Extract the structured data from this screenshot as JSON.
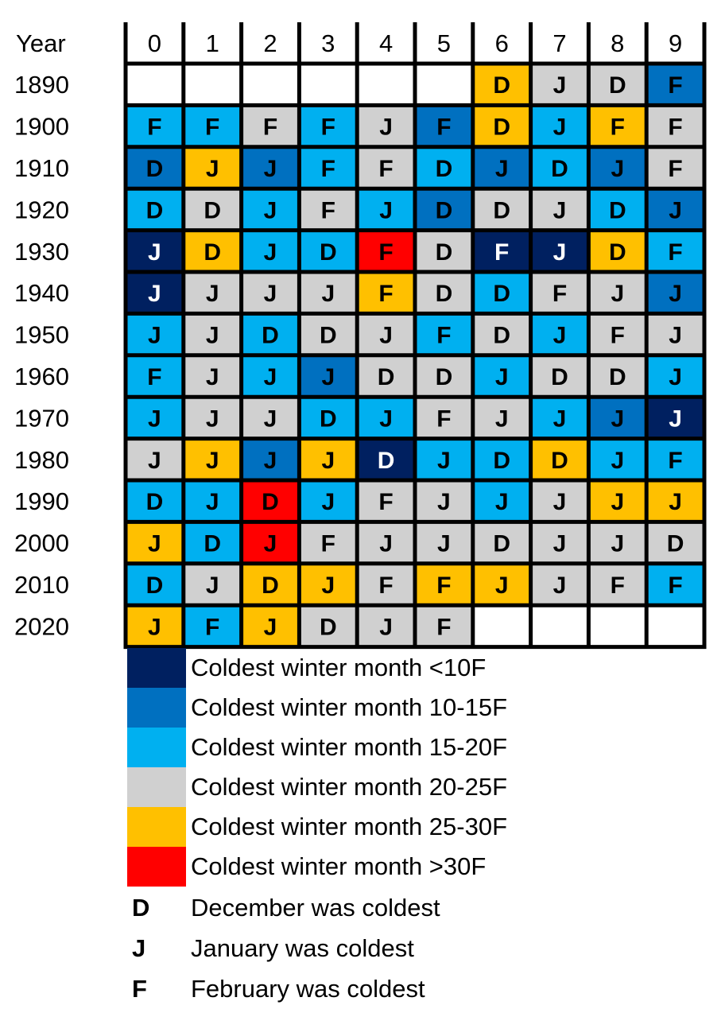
{
  "chart_data": {
    "type": "heatmap",
    "corner_label": "Year",
    "columns": [
      "0",
      "1",
      "2",
      "3",
      "4",
      "5",
      "6",
      "7",
      "8",
      "9"
    ],
    "rows": [
      "1890",
      "1900",
      "1910",
      "1920",
      "1930",
      "1940",
      "1950",
      "1960",
      "1970",
      "1980",
      "1990",
      "2000",
      "2010",
      "2020"
    ],
    "colors": {
      "lt10": "#002060",
      "10-15": "#0070C0",
      "15-20": "#00B0F0",
      "20-25": "#D0D0D0",
      "25-30": "#FFC000",
      "gt30": "#FF0000",
      "empty": "#FFFFFF"
    },
    "cells": [
      [
        null,
        null,
        null,
        null,
        null,
        null,
        {
          "m": "D",
          "c": "25-30"
        },
        {
          "m": "J",
          "c": "20-25"
        },
        {
          "m": "D",
          "c": "20-25"
        },
        {
          "m": "F",
          "c": "10-15"
        }
      ],
      [
        {
          "m": "F",
          "c": "15-20"
        },
        {
          "m": "F",
          "c": "15-20"
        },
        {
          "m": "F",
          "c": "20-25"
        },
        {
          "m": "F",
          "c": "15-20"
        },
        {
          "m": "J",
          "c": "20-25"
        },
        {
          "m": "F",
          "c": "10-15"
        },
        {
          "m": "D",
          "c": "25-30"
        },
        {
          "m": "J",
          "c": "15-20"
        },
        {
          "m": "F",
          "c": "25-30"
        },
        {
          "m": "F",
          "c": "20-25"
        }
      ],
      [
        {
          "m": "D",
          "c": "10-15"
        },
        {
          "m": "J",
          "c": "25-30"
        },
        {
          "m": "J",
          "c": "10-15"
        },
        {
          "m": "F",
          "c": "15-20"
        },
        {
          "m": "F",
          "c": "20-25"
        },
        {
          "m": "D",
          "c": "15-20"
        },
        {
          "m": "J",
          "c": "10-15"
        },
        {
          "m": "D",
          "c": "15-20"
        },
        {
          "m": "J",
          "c": "10-15"
        },
        {
          "m": "F",
          "c": "20-25"
        }
      ],
      [
        {
          "m": "D",
          "c": "15-20"
        },
        {
          "m": "D",
          "c": "20-25"
        },
        {
          "m": "J",
          "c": "15-20"
        },
        {
          "m": "F",
          "c": "20-25"
        },
        {
          "m": "J",
          "c": "15-20"
        },
        {
          "m": "D",
          "c": "10-15"
        },
        {
          "m": "D",
          "c": "20-25"
        },
        {
          "m": "J",
          "c": "20-25"
        },
        {
          "m": "D",
          "c": "15-20"
        },
        {
          "m": "J",
          "c": "10-15"
        }
      ],
      [
        {
          "m": "J",
          "c": "lt10"
        },
        {
          "m": "D",
          "c": "25-30"
        },
        {
          "m": "J",
          "c": "15-20"
        },
        {
          "m": "D",
          "c": "15-20"
        },
        {
          "m": "F",
          "c": "gt30"
        },
        {
          "m": "D",
          "c": "20-25"
        },
        {
          "m": "F",
          "c": "lt10"
        },
        {
          "m": "J",
          "c": "lt10"
        },
        {
          "m": "D",
          "c": "25-30"
        },
        {
          "m": "F",
          "c": "15-20"
        }
      ],
      [
        {
          "m": "J",
          "c": "lt10"
        },
        {
          "m": "J",
          "c": "20-25"
        },
        {
          "m": "J",
          "c": "20-25"
        },
        {
          "m": "J",
          "c": "20-25"
        },
        {
          "m": "F",
          "c": "25-30"
        },
        {
          "m": "D",
          "c": "20-25"
        },
        {
          "m": "D",
          "c": "15-20"
        },
        {
          "m": "F",
          "c": "20-25"
        },
        {
          "m": "J",
          "c": "20-25"
        },
        {
          "m": "J",
          "c": "10-15"
        }
      ],
      [
        {
          "m": "J",
          "c": "15-20"
        },
        {
          "m": "J",
          "c": "20-25"
        },
        {
          "m": "D",
          "c": "15-20"
        },
        {
          "m": "D",
          "c": "20-25"
        },
        {
          "m": "J",
          "c": "20-25"
        },
        {
          "m": "F",
          "c": "15-20"
        },
        {
          "m": "D",
          "c": "20-25"
        },
        {
          "m": "J",
          "c": "15-20"
        },
        {
          "m": "F",
          "c": "20-25"
        },
        {
          "m": "J",
          "c": "20-25"
        }
      ],
      [
        {
          "m": "F",
          "c": "15-20"
        },
        {
          "m": "J",
          "c": "20-25"
        },
        {
          "m": "J",
          "c": "15-20"
        },
        {
          "m": "J",
          "c": "10-15"
        },
        {
          "m": "D",
          "c": "20-25"
        },
        {
          "m": "D",
          "c": "20-25"
        },
        {
          "m": "J",
          "c": "15-20"
        },
        {
          "m": "D",
          "c": "20-25"
        },
        {
          "m": "D",
          "c": "20-25"
        },
        {
          "m": "J",
          "c": "15-20"
        }
      ],
      [
        {
          "m": "J",
          "c": "15-20"
        },
        {
          "m": "J",
          "c": "20-25"
        },
        {
          "m": "J",
          "c": "20-25"
        },
        {
          "m": "D",
          "c": "15-20"
        },
        {
          "m": "J",
          "c": "15-20"
        },
        {
          "m": "F",
          "c": "20-25"
        },
        {
          "m": "J",
          "c": "20-25"
        },
        {
          "m": "J",
          "c": "15-20"
        },
        {
          "m": "J",
          "c": "10-15"
        },
        {
          "m": "J",
          "c": "lt10"
        }
      ],
      [
        {
          "m": "J",
          "c": "20-25"
        },
        {
          "m": "J",
          "c": "25-30"
        },
        {
          "m": "J",
          "c": "10-15"
        },
        {
          "m": "J",
          "c": "25-30"
        },
        {
          "m": "D",
          "c": "lt10"
        },
        {
          "m": "J",
          "c": "15-20"
        },
        {
          "m": "D",
          "c": "15-20"
        },
        {
          "m": "D",
          "c": "25-30"
        },
        {
          "m": "J",
          "c": "15-20"
        },
        {
          "m": "F",
          "c": "15-20"
        }
      ],
      [
        {
          "m": "D",
          "c": "15-20"
        },
        {
          "m": "J",
          "c": "15-20"
        },
        {
          "m": "D",
          "c": "gt30"
        },
        {
          "m": "J",
          "c": "15-20"
        },
        {
          "m": "F",
          "c": "20-25"
        },
        {
          "m": "J",
          "c": "20-25"
        },
        {
          "m": "J",
          "c": "15-20"
        },
        {
          "m": "J",
          "c": "20-25"
        },
        {
          "m": "J",
          "c": "25-30"
        },
        {
          "m": "J",
          "c": "25-30"
        }
      ],
      [
        {
          "m": "J",
          "c": "25-30"
        },
        {
          "m": "D",
          "c": "15-20"
        },
        {
          "m": "J",
          "c": "gt30"
        },
        {
          "m": "F",
          "c": "20-25"
        },
        {
          "m": "J",
          "c": "20-25"
        },
        {
          "m": "J",
          "c": "20-25"
        },
        {
          "m": "D",
          "c": "20-25"
        },
        {
          "m": "J",
          "c": "20-25"
        },
        {
          "m": "J",
          "c": "20-25"
        },
        {
          "m": "D",
          "c": "20-25"
        }
      ],
      [
        {
          "m": "D",
          "c": "15-20"
        },
        {
          "m": "J",
          "c": "20-25"
        },
        {
          "m": "D",
          "c": "25-30"
        },
        {
          "m": "J",
          "c": "25-30"
        },
        {
          "m": "F",
          "c": "20-25"
        },
        {
          "m": "F",
          "c": "25-30"
        },
        {
          "m": "J",
          "c": "25-30"
        },
        {
          "m": "J",
          "c": "20-25"
        },
        {
          "m": "F",
          "c": "20-25"
        },
        {
          "m": "F",
          "c": "15-20"
        }
      ],
      [
        {
          "m": "J",
          "c": "25-30"
        },
        {
          "m": "F",
          "c": "15-20"
        },
        {
          "m": "J",
          "c": "25-30"
        },
        {
          "m": "D",
          "c": "20-25"
        },
        {
          "m": "J",
          "c": "20-25"
        },
        {
          "m": "F",
          "c": "20-25"
        },
        null,
        null,
        null,
        null
      ]
    ],
    "legend": {
      "colors": [
        {
          "key": "lt10",
          "label": "Coldest winter month <10F"
        },
        {
          "key": "10-15",
          "label": "Coldest winter month 10-15F"
        },
        {
          "key": "15-20",
          "label": "Coldest winter month 15-20F"
        },
        {
          "key": "20-25",
          "label": "Coldest winter month 20-25F"
        },
        {
          "key": "25-30",
          "label": "Coldest winter month 25-30F"
        },
        {
          "key": "gt30",
          "label": "Coldest winter month >30F"
        }
      ],
      "codes": [
        {
          "code": "D",
          "label": "December was coldest"
        },
        {
          "code": "J",
          "label": "January was coldest"
        },
        {
          "code": "F",
          "label": "February was coldest"
        }
      ]
    }
  }
}
